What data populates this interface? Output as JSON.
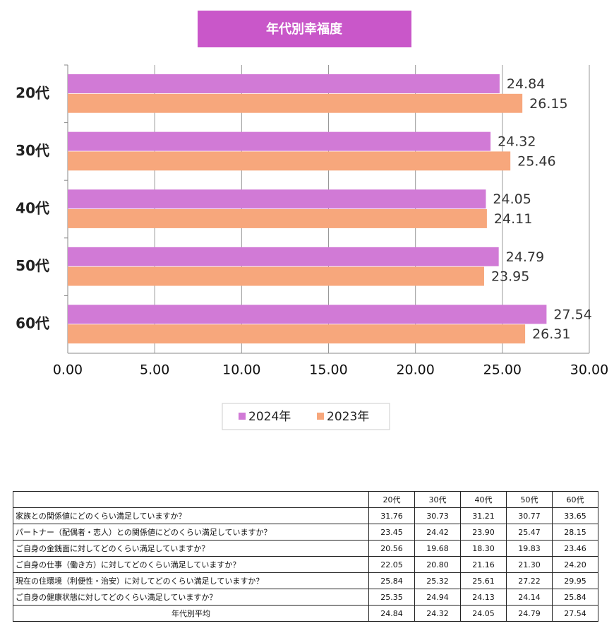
{
  "chart_data": {
    "type": "hbar",
    "title": "年代別幸福度",
    "categories": [
      "20代",
      "30代",
      "40代",
      "50代",
      "60代"
    ],
    "series": [
      {
        "name": "2024年",
        "color": "#d17ad6",
        "values": [
          24.84,
          24.32,
          24.05,
          24.79,
          27.54
        ]
      },
      {
        "name": "2023年",
        "color": "#f7a77c",
        "values": [
          26.15,
          25.46,
          24.11,
          23.95,
          26.31
        ]
      }
    ],
    "xlim": [
      0,
      30
    ],
    "xticks": [
      {
        "value": 0,
        "label": "0.00"
      },
      {
        "value": 5,
        "label": "5.00"
      },
      {
        "value": 10,
        "label": "10.00"
      },
      {
        "value": 15,
        "label": "15.00"
      },
      {
        "value": 20,
        "label": "20.00"
      },
      {
        "value": 25,
        "label": "25.00"
      },
      {
        "value": 30,
        "label": "30.00"
      }
    ],
    "grid": true,
    "legend": "bottom"
  },
  "table": {
    "columns": [
      "20代",
      "30代",
      "40代",
      "50代",
      "60代"
    ],
    "rows": [
      [
        "家族との関係値にどのくらい満足していますか？",
        "31.76",
        "30.73",
        "31.21",
        "30.77",
        "33.65"
      ],
      [
        "パートナー（配偶者・恋人）との関係値にどのくらい満足していますか？",
        "23.45",
        "24.42",
        "23.90",
        "25.47",
        "28.15"
      ],
      [
        "ご自身の金銭面に対してどのくらい満足していますか？",
        "20.56",
        "19.68",
        "18.30",
        "19.83",
        "23.46"
      ],
      [
        "ご自身の仕事（働き方）に対してどのくらい満足していますか？",
        "22.05",
        "20.80",
        "21.16",
        "21.30",
        "24.20"
      ],
      [
        "現在の住環境（利便性・治安）に対してどのくらい満足していますか？",
        "25.84",
        "25.32",
        "25.61",
        "27.22",
        "29.95"
      ],
      [
        "ご自身の健康状態に対してどのくらい満足していますか？",
        "25.35",
        "24.94",
        "24.13",
        "24.14",
        "25.84"
      ],
      [
        "年代別平均",
        "24.84",
        "24.32",
        "24.05",
        "24.79",
        "27.54"
      ]
    ]
  }
}
